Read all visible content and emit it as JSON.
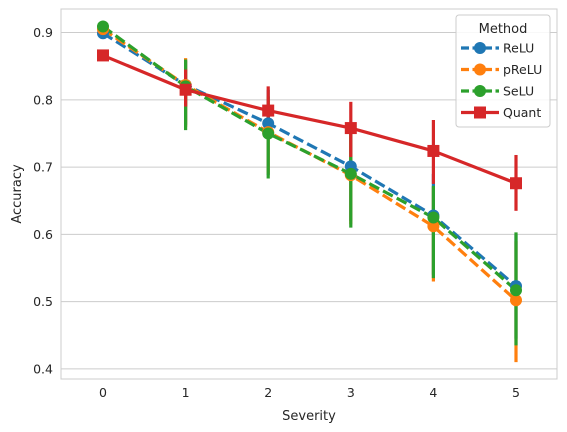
{
  "chart_data": {
    "type": "line",
    "xlabel": "Severity",
    "ylabel": "Accuracy",
    "categories": [
      "0",
      "1",
      "2",
      "3",
      "4",
      "5"
    ],
    "ylim": [
      0.385,
      0.935
    ],
    "yticks": [
      "0.4",
      "0.5",
      "0.6",
      "0.7",
      "0.8",
      "0.9"
    ],
    "grid": true,
    "legend": {
      "title": "Method",
      "placement": "top-right"
    },
    "series": [
      {
        "name": "ReLU",
        "color": "#1f77b4",
        "linestyle": "dashed",
        "marker": "circle",
        "values": [
          0.899,
          0.822,
          0.765,
          0.701,
          0.628,
          0.523
        ],
        "error_low": [
          null,
          0.763,
          0.688,
          0.62,
          0.54,
          0.445
        ],
        "error_high": [
          null,
          0.858,
          0.815,
          0.76,
          0.69,
          0.6
        ]
      },
      {
        "name": "pReLU",
        "color": "#ff7f0e",
        "linestyle": "dashed",
        "marker": "circle",
        "values": [
          0.905,
          0.822,
          0.752,
          0.688,
          0.612,
          0.502
        ],
        "error_low": [
          null,
          0.76,
          0.69,
          0.615,
          0.53,
          0.41
        ],
        "error_high": [
          null,
          0.862,
          0.8,
          0.75,
          0.67,
          0.59
        ]
      },
      {
        "name": "SeLU",
        "color": "#2ca02c",
        "linestyle": "dashed",
        "marker": "circle",
        "values": [
          0.909,
          0.82,
          0.75,
          0.69,
          0.625,
          0.517
        ],
        "error_low": [
          null,
          0.755,
          0.683,
          0.61,
          0.535,
          0.435
        ],
        "error_high": [
          null,
          0.86,
          0.805,
          0.755,
          0.672,
          0.603
        ]
      },
      {
        "name": "Quant",
        "color": "#d62728",
        "linestyle": "solid",
        "marker": "square",
        "values": [
          0.866,
          0.815,
          0.784,
          0.758,
          0.724,
          0.676
        ],
        "error_low": [
          null,
          0.79,
          0.748,
          0.715,
          0.675,
          0.635
        ],
        "error_high": [
          null,
          0.845,
          0.82,
          0.797,
          0.77,
          0.718
        ]
      }
    ]
  }
}
